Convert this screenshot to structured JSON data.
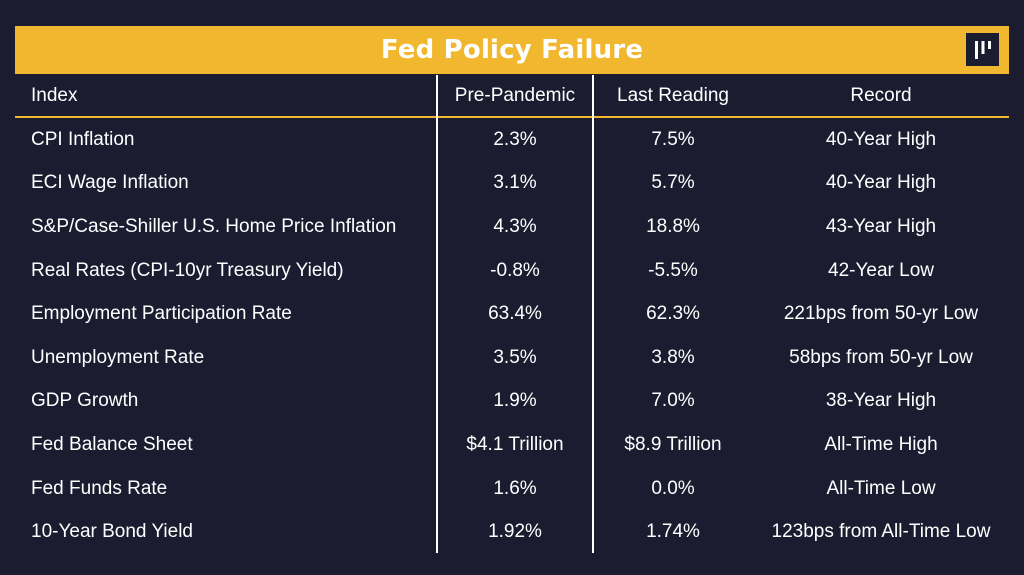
{
  "title": "Fed Policy Failure",
  "logo_icon": "pantera-logo",
  "colors": {
    "background": "#1b1c30",
    "accent": "#f0b72f",
    "text": "#ffffff"
  },
  "chart_data": {
    "type": "table",
    "title": "Fed Policy Failure",
    "columns": [
      "Index",
      "Pre-Pandemic",
      "Last Reading",
      "Record"
    ],
    "rows": [
      [
        "CPI Inflation",
        "2.3%",
        "7.5%",
        "40-Year High"
      ],
      [
        "ECI Wage Inflation",
        "3.1%",
        "5.7%",
        "40-Year High"
      ],
      [
        "S&P/Case-Shiller U.S. Home Price Inflation",
        "4.3%",
        "18.8%",
        "43-Year High"
      ],
      [
        "Real Rates (CPI-10yr Treasury Yield)",
        "-0.8%",
        "-5.5%",
        "42-Year Low"
      ],
      [
        "Employment Participation Rate",
        "63.4%",
        "62.3%",
        "221bps from 50-yr Low"
      ],
      [
        "Unemployment Rate",
        "3.5%",
        "3.8%",
        "58bps from 50-yr Low"
      ],
      [
        "GDP Growth",
        "1.9%",
        "7.0%",
        "38-Year High"
      ],
      [
        "Fed Balance Sheet",
        "$4.1 Trillion",
        "$8.9 Trillion",
        "All-Time High"
      ],
      [
        "Fed Funds Rate",
        "1.6%",
        "0.0%",
        "All-Time Low"
      ],
      [
        "10-Year Bond Yield",
        "1.92%",
        "1.74%",
        "123bps from All-Time Low"
      ]
    ]
  }
}
